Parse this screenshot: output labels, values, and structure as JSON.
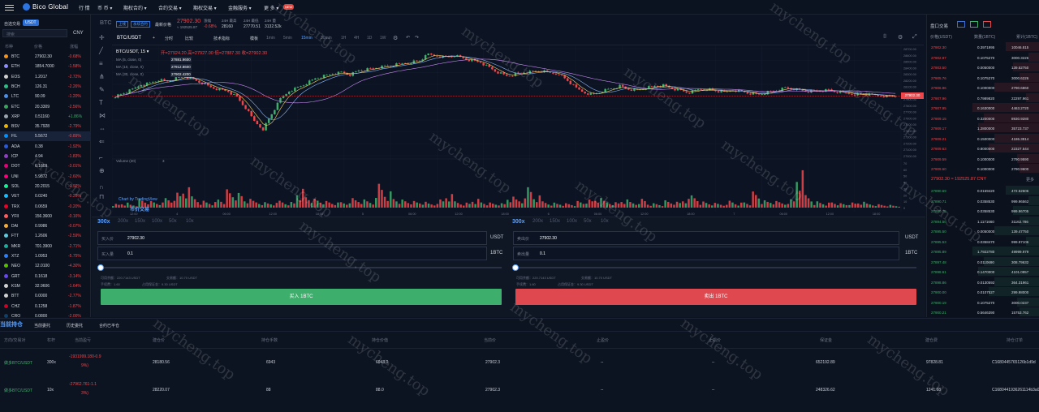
{
  "topnav": {
    "brand": "Bico Global",
    "items": [
      "行 情",
      "币 币 ▾",
      "期权合约 ▾",
      "合约交易 ▾",
      "期权交易 ▾",
      "金融服务 ▾",
      "更 多 ▾"
    ],
    "new_badge": "NEW"
  },
  "market": {
    "tab_self": "自选交易",
    "tab_usdt": "USDT",
    "currency": "CNY",
    "search_placeholder": "搜索",
    "headers": {
      "pair": "币种",
      "price": "价格",
      "change": "涨幅"
    },
    "rows": [
      {
        "coin": "BTC",
        "price": "27902.30",
        "change": "-0.68%",
        "color": "#f7931a"
      },
      {
        "coin": "ETH",
        "price": "1854.7000",
        "change": "-1.58%",
        "color": "#8c8cff"
      },
      {
        "coin": "EOS",
        "price": "1.2017",
        "change": "-2.72%",
        "color": "#cfcfcf"
      },
      {
        "coin": "BCH",
        "price": "126.31",
        "change": "-2.26%",
        "color": "#2ebd85"
      },
      {
        "coin": "LTC",
        "price": "90.09",
        "change": "-1.20%",
        "color": "#4a8fe7"
      },
      {
        "coin": "ETC",
        "price": "20.3309",
        "change": "-2.56%",
        "color": "#3aa35c"
      },
      {
        "coin": "XRP",
        "price": "0.51160",
        "change": "+1.86%",
        "color": "#9aa3b0"
      },
      {
        "coin": "BSV",
        "price": "35.7928",
        "change": "-2.79%",
        "color": "#eab300"
      },
      {
        "coin": "FIL",
        "price": "5.5672",
        "change": "-0.89%",
        "color": "#0090ff"
      },
      {
        "coin": "ADA",
        "price": "0.38",
        "change": "-1.92%",
        "color": "#2a5ada"
      },
      {
        "coin": "ICP",
        "price": "4.94",
        "change": "-1.83%",
        "color": "#8e3fbf"
      },
      {
        "coin": "DOT",
        "price": "6.1609",
        "change": "-3.01%",
        "color": "#e6007a"
      },
      {
        "coin": "UNI",
        "price": "5.9872",
        "change": "-2.60%",
        "color": "#ff007a"
      },
      {
        "coin": "SOL",
        "price": "20.2015",
        "change": "-1.92%",
        "color": "#14f195"
      },
      {
        "coin": "VET",
        "price": "0.0240",
        "change": "-0.26%",
        "color": "#15bdff"
      },
      {
        "coin": "TRX",
        "price": "0.0659",
        "change": "-0.20%",
        "color": "#ef0027"
      },
      {
        "coin": "YFII",
        "price": "156.3600",
        "change": "-0.16%",
        "color": "#ff5b5b"
      },
      {
        "coin": "DAI",
        "price": "0.9986",
        "change": "-0.07%",
        "color": "#f5ac37"
      },
      {
        "coin": "FTT",
        "price": "1.2606",
        "change": "-2.59%",
        "color": "#5fcade"
      },
      {
        "coin": "MKR",
        "price": "701.3900",
        "change": "-2.71%",
        "color": "#1aab9b"
      },
      {
        "coin": "XTZ",
        "price": "1.0953",
        "change": "-5.75%",
        "color": "#2c7df7"
      },
      {
        "coin": "NEO",
        "price": "12.0100",
        "change": "-4.30%",
        "color": "#58bf00"
      },
      {
        "coin": "GRT",
        "price": "0.1618",
        "change": "-3.14%",
        "color": "#6747ed"
      },
      {
        "coin": "KSM",
        "price": "32.9606",
        "change": "-1.64%",
        "color": "#d0d0d0"
      },
      {
        "coin": "BTT",
        "price": "0.0000",
        "change": "-2.77%",
        "color": "#d0d0d0"
      },
      {
        "coin": "CHZ",
        "price": "0.1258",
        "change": "-1.87%",
        "color": "#cd0124"
      },
      {
        "coin": "CRO",
        "price": "0.0800",
        "change": "-2.00%",
        "color": "#103f68"
      }
    ]
  },
  "ticker": {
    "symbol": "BTC",
    "tag1": "上线",
    "tag2": "永续合约",
    "latest_label": "最新价格",
    "price": "27902.30",
    "price_cny": "≈ 192525.87",
    "change_label": "涨幅",
    "change": "-0.68%",
    "high_label": "24H 最高",
    "high": "28160",
    "low_label": "24H 最低",
    "low": "27770.51",
    "vol_label": "24H 量",
    "vol": "3132.52k"
  },
  "chart_toolbar": {
    "symbol": "BTC/USDT",
    "items": [
      "分时",
      "1min",
      "5min",
      "15min",
      "30min",
      "1H",
      "4H",
      "1D",
      "1W"
    ],
    "compare": "比较",
    "indicators": "技术指标",
    "templates": "模板",
    "active": "15min"
  },
  "chart_legend": {
    "title": "BTC/USDT, 15 ▾",
    "ohlc": "开=27924.20 高=27927.00 低=27887.30 收=27902.30",
    "ma1_label": "MA (5, close, 0)",
    "ma1": "27881.9600",
    "ma2_label": "MA (10, close, 0)",
    "ma2": "27912.8600",
    "ma3_label": "MA (30, close, 0)",
    "ma3": "27902.4200",
    "volume_label": "Volume (20)",
    "volume_val": "3",
    "credit": "Chart by TradingView"
  },
  "chart_data": {
    "type": "candlestick",
    "title": "BTC/USDT, 15",
    "ylim": [
      26900,
      28700
    ],
    "y_ticks": [
      "28700.00",
      "28600.00",
      "28500.00",
      "28400.00",
      "28300.00",
      "28200.00",
      "28100.00",
      "28000.00",
      "27900.00",
      "27800.00",
      "27700.00",
      "27600.00",
      "27500.00",
      "27400.00",
      "27300.00",
      "27200.00",
      "27100.00",
      "27000.00"
    ],
    "vol_ticks": [
      "70",
      "60",
      "50",
      "40",
      "30",
      "20",
      "10",
      "0"
    ],
    "current_price": 27902.3,
    "x_ticks": [
      "12:00",
      "4",
      "06:00",
      "12:00",
      "18:00",
      "5",
      "06:00",
      "12:00",
      "18:00",
      "6",
      "06:00",
      "12:00",
      "18:00",
      "7",
      "06:00",
      "12:00",
      "18:00"
    ],
    "close_path": [
      27900,
      27950,
      28010,
      28100,
      28120,
      28180,
      28150,
      28200,
      28240,
      28180,
      28120,
      28050,
      28010,
      27980,
      27880,
      27700,
      27480,
      27350,
      27600,
      27850,
      27990,
      28050,
      28120,
      28200,
      28240,
      28280,
      28300,
      28260,
      28330,
      28350,
      28380,
      28400,
      28420,
      28450,
      28480,
      28500,
      28600,
      28580,
      28560,
      28590,
      28540,
      28500,
      28470,
      28380,
      28300,
      28240,
      28270,
      28300,
      28310,
      28320,
      28290,
      28280,
      28160,
      28030,
      27960,
      27930,
      27990,
      28030,
      28070,
      28020,
      28000,
      28040,
      28070,
      28080,
      28030,
      27990,
      27960,
      28010,
      28030,
      27990,
      27960,
      28010,
      27980,
      27950,
      27930,
      27970,
      28000,
      28040,
      28020,
      27990,
      27980,
      27990,
      28000,
      27970,
      27950,
      27940,
      27930,
      27920,
      27910,
      27900
    ],
    "volumes": [
      6,
      8,
      5,
      12,
      9,
      7,
      14,
      22,
      30,
      18,
      11,
      9,
      14,
      25,
      20,
      12,
      10,
      8,
      7,
      11,
      9,
      30,
      18,
      12,
      9,
      7,
      8,
      14,
      12,
      10,
      38,
      26,
      15,
      11,
      9,
      8,
      6,
      12,
      20,
      10,
      8,
      14,
      9,
      7,
      6,
      15,
      12,
      30,
      18,
      10,
      8,
      7,
      6,
      9,
      11,
      13,
      10,
      8,
      12,
      9,
      14,
      7,
      6,
      10,
      8,
      12,
      18,
      9,
      7,
      6,
      11,
      8,
      9,
      22,
      10,
      9,
      8,
      12,
      55,
      20,
      10,
      8,
      9,
      6,
      7,
      8,
      6,
      5,
      4,
      3
    ]
  },
  "trade": {
    "lev_buy": [
      "300x",
      "200x",
      "150x",
      "100x",
      "50x",
      "10x"
    ],
    "lev_sell": [
      "300x",
      "200x",
      "150x",
      "100x",
      "50x",
      "10x"
    ],
    "buy_price_label": "买入价",
    "buy_price": "27902.30",
    "buy_qty_label": "买入量",
    "buy_qty": "0.1",
    "sell_price_label": "卖出价",
    "sell_price": "27902.30",
    "sell_qty_label": "卖出量",
    "sell_qty": "0.1",
    "unit_usdt": "USDT",
    "unit_btc": "1BTC",
    "avail": "可用余额：220.7143 USDT",
    "trade_amt": "交易额：10.70 USDT",
    "fee": "手续费：1.60",
    "margin": "占用保证金：9.30 USDT",
    "buy_btn": "买入 1BTC",
    "sell_btn": "卖出 1BTC"
  },
  "orderbook": {
    "title": "盘口交易",
    "headers": {
      "price": "价格(USDT)",
      "qty": "数量(1BTC)",
      "total": "累计(1BTC)"
    },
    "asks": [
      [
        "27902.30",
        "0.3971995",
        "10046.815"
      ],
      [
        "27902.97",
        "0.1075270",
        "3000.3226"
      ],
      [
        "27903.50",
        "0.0050000",
        "139.52750"
      ],
      [
        "27905.76",
        "0.1075270",
        "3000.6226"
      ],
      [
        "27906.86",
        "0.1000000",
        "2790.6860"
      ],
      [
        "27907.96",
        "0.7989820",
        "22297.961"
      ],
      [
        "27907.95",
        "0.1630000",
        "4463.2720"
      ],
      [
        "27909.15",
        "0.3200000",
        "8930.9280"
      ],
      [
        "27909.17",
        "1.2800000",
        "35723.737"
      ],
      [
        "27909.21",
        "0.1500000",
        "4186.3814"
      ],
      [
        "27909.63",
        "0.8000000",
        "22327.544"
      ],
      [
        "27909.59",
        "0.1000000",
        "2790.9590"
      ],
      [
        "27909.60",
        "0.1000000",
        "2790.9600"
      ]
    ],
    "mid_price": "27902.30 ≈ 192525.87 CNY",
    "more": "更多",
    "bids": [
      [
        "27890.69",
        "0.0169420",
        "472.52606"
      ],
      [
        "27890.71",
        "0.0358530",
        "999.96562"
      ],
      [
        "27890.75",
        "0.0358530",
        "999.96705"
      ],
      [
        "27894.50",
        "1.1171660",
        "31162.786"
      ],
      [
        "27895.50",
        "0.0050000",
        "139.47750"
      ],
      [
        "27895.53",
        "0.0358470",
        "999.97106"
      ],
      [
        "27895.89",
        "1.7922780",
        "49999.979"
      ],
      [
        "27897.48",
        "0.0110690",
        "308.79632"
      ],
      [
        "27898.61",
        "0.1470000",
        "4101.0957"
      ],
      [
        "27898.86",
        "0.0130592",
        "364.31961"
      ],
      [
        "27900.00",
        "0.0107527",
        "299.98000"
      ],
      [
        "27900.19",
        "0.1075270",
        "3000.0237"
      ],
      [
        "27900.21",
        "0.5646390",
        "15753.762"
      ]
    ]
  },
  "positions": {
    "tabs": [
      "当前持仓",
      "当前委托",
      "历史委托",
      "合约已平仓"
    ],
    "headers": [
      "方向/交易对",
      "杠杆",
      "当前盈亏",
      "建仓价",
      "持仓手数",
      "持仓价值",
      "当前价",
      "止盈价",
      "止损价",
      "保证金",
      "建仓费",
      "持仓订单"
    ],
    "rows": [
      {
        "pair": "做多BTC/USDT",
        "lev": "300x",
        "pnl1": "-1931999.180-0.9",
        "pnl2": "9%)",
        "open": "28180.56",
        "lots": "6943",
        "value": "6943.0",
        "cur": "27902.3",
        "tp": "--",
        "sl": "--",
        "margin": "652192.89",
        "fee": "97828.81",
        "order": "C1680445765126b1d9d"
      },
      {
        "pair": "做多BTC/USDT",
        "lev": "10x",
        "pnl1": "-27962.761-1.1",
        "pnl2": "3%)",
        "open": "28220.07",
        "lots": "88",
        "value": "88.0",
        "cur": "27902.3",
        "tp": "--",
        "sl": "--",
        "margin": "248326.62",
        "fee": "1241.68",
        "order": "C1680441936261114b3a0"
      }
    ]
  },
  "watermark": "mycheng.top"
}
